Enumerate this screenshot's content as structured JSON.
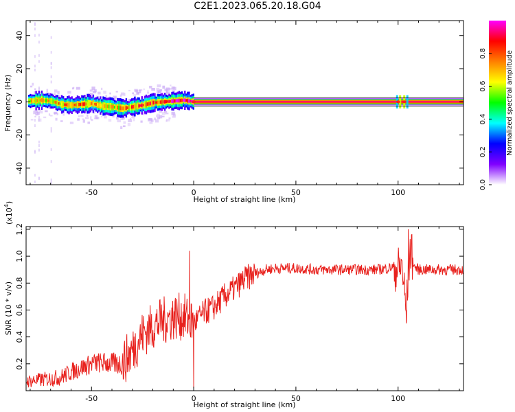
{
  "title": "C2E1.2023.065.20.18.G04",
  "chart_data": [
    {
      "type": "heatmap",
      "xlabel": "Height of straight line (km)",
      "ylabel": "Frequency (Hz)",
      "xlim": [
        -82,
        132
      ],
      "ylim": [
        -50,
        49
      ],
      "xticks": [
        -50,
        0,
        50,
        100
      ],
      "xtick_labels": [
        "-50",
        "0",
        "50",
        "100"
      ],
      "yticks": [
        -40,
        -20,
        0,
        20,
        40
      ],
      "ytick_labels": [
        "-40",
        "-20",
        "0",
        "20",
        "40"
      ],
      "ridge": {
        "description": "dominant spectral peak frequency vs height",
        "x": [
          -80,
          -75,
          -70,
          -65,
          -60,
          -55,
          -50,
          -45,
          -40,
          -35,
          -30,
          -25,
          -20,
          -15,
          -10,
          -5,
          0,
          10,
          30,
          50,
          70,
          90,
          100,
          104,
          110,
          130
        ],
        "freq": [
          0.5,
          1.0,
          0.5,
          -1.5,
          -2.0,
          -1.5,
          -1.0,
          -2.5,
          -3.0,
          -4.0,
          -3.0,
          -2.0,
          -0.5,
          0.0,
          0.5,
          1.0,
          0.0,
          0.0,
          0.0,
          0.0,
          0.0,
          0.0,
          0.0,
          0.0,
          0.0,
          0.0
        ],
        "peak_amplitude": [
          0.4,
          0.45,
          0.5,
          0.55,
          0.6,
          0.55,
          0.5,
          0.5,
          0.45,
          0.5,
          0.55,
          0.6,
          0.65,
          0.7,
          0.75,
          0.8,
          0.9,
          1.0,
          1.0,
          1.0,
          1.0,
          1.0,
          0.85,
          0.85,
          1.0,
          1.0
        ]
      },
      "colorbar": {
        "label": "Normalized spectral amplitude",
        "ticks": [
          0.0,
          0.2,
          0.4,
          0.6,
          0.8
        ],
        "tick_labels": [
          "0.0",
          "0.2",
          "0.4",
          "0.6",
          "0.8"
        ],
        "range": [
          0,
          1
        ],
        "colormap": [
          "#ffffff",
          "#8000ff",
          "#0000ff",
          "#00ffff",
          "#00ff00",
          "#ffff00",
          "#ff8000",
          "#ff0000",
          "#ff00ff"
        ]
      }
    },
    {
      "type": "line",
      "xlabel": "Height of straight line (km)",
      "ylabel": "SNR (10 * v/v)",
      "scale_label": "(x10",
      "scale_exp": "4",
      "scale_close": ")",
      "xlim": [
        -82,
        132
      ],
      "ylim": [
        0.0,
        1.22
      ],
      "xticks": [
        -50,
        0,
        50,
        100
      ],
      "xtick_labels": [
        "-50",
        "0",
        "50",
        "100"
      ],
      "yticks": [
        0.2,
        0.4,
        0.6,
        0.8,
        1.0,
        1.2
      ],
      "ytick_labels": [
        "0.2",
        "0.4",
        "0.6",
        "0.8",
        "1.0",
        "1.2"
      ],
      "color": "#e8211d",
      "series": [
        {
          "x": [
            -82,
            -75,
            -70,
            -65,
            -60,
            -55,
            -50,
            -45,
            -40,
            -35,
            -30,
            -25,
            -20,
            -15,
            -10,
            -5,
            0,
            5,
            10,
            15,
            20,
            25,
            30,
            35,
            40,
            50,
            60,
            70,
            80,
            90,
            95,
            98,
            100,
            102,
            103,
            104,
            105,
            106,
            108,
            110,
            120,
            132
          ],
          "y": [
            0.07,
            0.08,
            0.09,
            0.1,
            0.14,
            0.17,
            0.2,
            0.21,
            0.2,
            0.2,
            0.3,
            0.42,
            0.48,
            0.52,
            0.55,
            0.55,
            0.5,
            0.58,
            0.62,
            0.7,
            0.76,
            0.83,
            0.87,
            0.9,
            0.91,
            0.91,
            0.9,
            0.9,
            0.9,
            0.9,
            0.91,
            0.92,
            0.9,
            0.93,
            0.75,
            0.55,
            0.9,
            1.05,
            0.92,
            0.9,
            0.9,
            0.9
          ]
        }
      ],
      "notable_points": [
        {
          "x": -2,
          "y": 1.04
        },
        {
          "x": 0,
          "y": 0.02
        },
        {
          "x": 104,
          "y": 0.5
        },
        {
          "x": 105,
          "y": 1.2
        }
      ]
    }
  ]
}
